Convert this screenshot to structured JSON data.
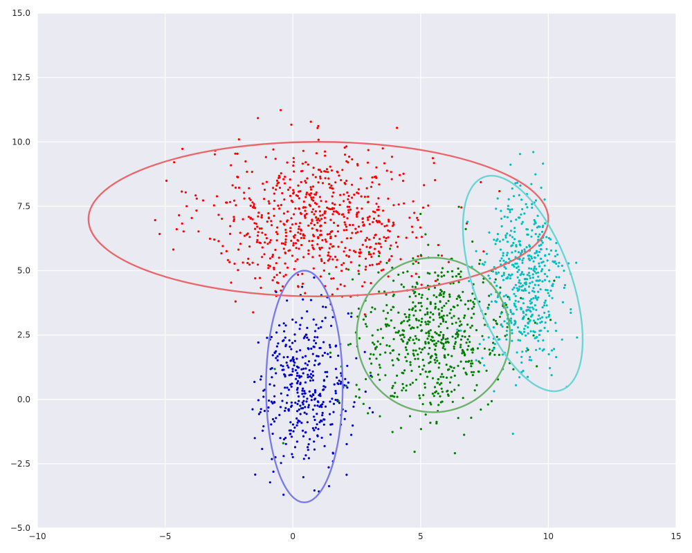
{
  "chart_data": {
    "type": "scatter",
    "title": "",
    "xlabel": "",
    "ylabel": "",
    "xlim": [
      -10,
      15
    ],
    "ylim": [
      -5,
      15
    ],
    "grid": true,
    "background": "#EAEAF2",
    "xticks": [
      -10,
      -5,
      0,
      5,
      10,
      15
    ],
    "yticks": [
      -5.0,
      -2.5,
      0.0,
      2.5,
      5.0,
      7.5,
      10.0,
      12.5,
      15.0
    ],
    "xtick_labels": [
      "−10",
      "−5",
      "0",
      "5",
      "10",
      "15"
    ],
    "ytick_labels": [
      "−5.0",
      "−2.5",
      "0.0",
      "2.5",
      "5.0",
      "7.5",
      "10.0",
      "12.5",
      "15.0"
    ],
    "series": [
      {
        "color": "#FF0000",
        "center": [
          1.0,
          7.0
        ],
        "spread": [
          2.2,
          1.4
        ],
        "n": 700,
        "ellipse": {
          "center": [
            1.0,
            7.0
          ],
          "width": 18.0,
          "height": 6.0,
          "angle": 0,
          "color": "#E8686B"
        }
      },
      {
        "color": "#0000CC",
        "center": [
          0.5,
          0.5
        ],
        "spread": [
          0.9,
          1.5
        ],
        "n": 400,
        "ellipse": {
          "center": [
            0.45,
            0.5
          ],
          "width": 3.0,
          "height": 9.0,
          "angle": 0,
          "color": "#7B7BE8"
        }
      },
      {
        "color": "#008000",
        "center": [
          5.5,
          2.5
        ],
        "spread": [
          1.5,
          1.5
        ],
        "n": 600,
        "ellipse": {
          "center": [
            5.5,
            2.5
          ],
          "width": 6.0,
          "height": 6.0,
          "angle": 0,
          "color": "#6FB26F"
        }
      },
      {
        "color": "#00BFBF",
        "center": [
          9.0,
          4.5
        ],
        "spread": [
          0.8,
          1.8
        ],
        "n": 500,
        "ellipse": {
          "center": [
            9.0,
            4.5
          ],
          "width": 3.8,
          "height": 8.8,
          "angle": 20,
          "color": "#6DD4D4"
        }
      }
    ]
  }
}
